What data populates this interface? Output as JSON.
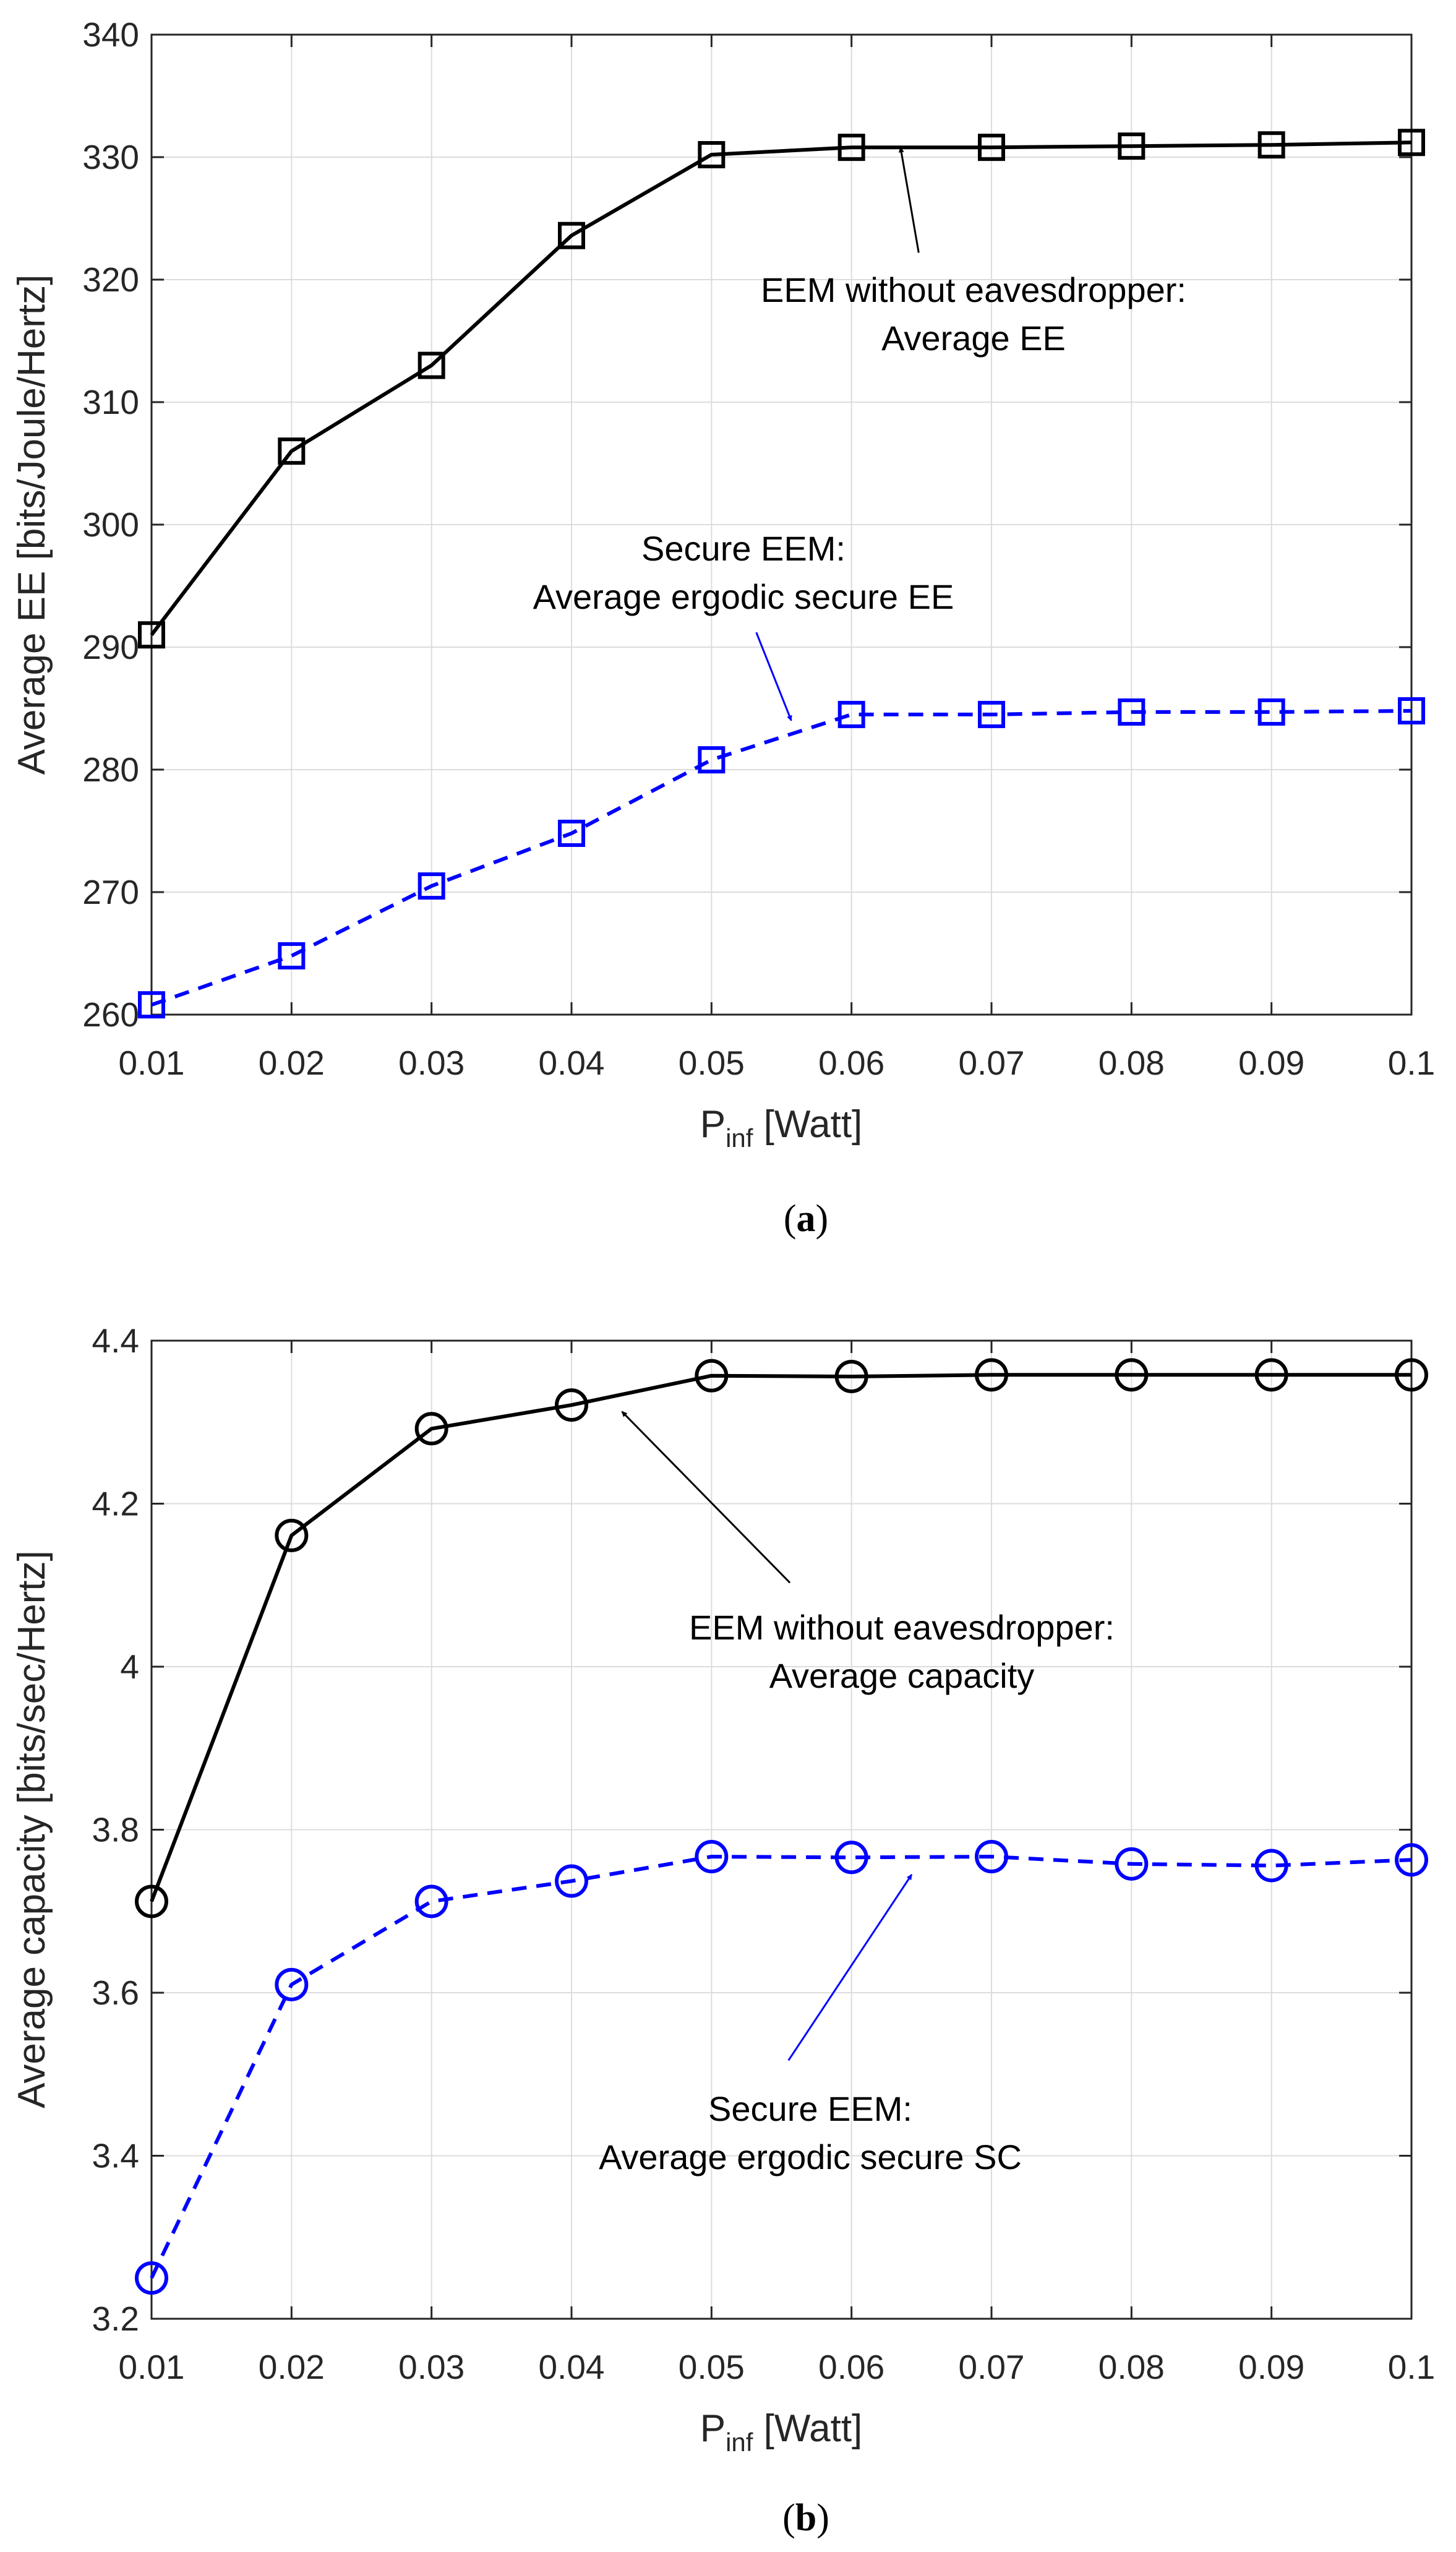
{
  "chart_data": [
    {
      "type": "line",
      "panel": "a",
      "caption_open": "(",
      "caption_letter": "a",
      "caption_close": ")",
      "xlabel_main": "P",
      "xlabel_sub": "inf",
      "xlabel_unit": " [Watt]",
      "ylabel": "Average EE [bits/Joule/Hertz]",
      "x": [
        0.01,
        0.02,
        0.03,
        0.04,
        0.05,
        0.06,
        0.07,
        0.08,
        0.09,
        0.1
      ],
      "x_tick_labels": [
        "0.01",
        "0.02",
        "0.03",
        "0.04",
        "0.05",
        "0.06",
        "0.07",
        "0.08",
        "0.09",
        "0.1"
      ],
      "xlim": [
        0.01,
        0.1
      ],
      "ylim": [
        260,
        340
      ],
      "y_ticks": [
        260,
        270,
        280,
        290,
        300,
        310,
        320,
        330,
        340
      ],
      "y_tick_labels": [
        "260",
        "270",
        "280",
        "290",
        "300",
        "310",
        "320",
        "330",
        "340"
      ],
      "grid": true,
      "series": [
        {
          "name": "EEM without eavesdropper: Average EE",
          "color": "#000000",
          "line_style": "solid",
          "marker": "square",
          "values": [
            291.0,
            306.0,
            313.0,
            323.6,
            330.2,
            330.8,
            330.8,
            330.9,
            331.0,
            331.2
          ]
        },
        {
          "name": "Secure EEM: Average ergodic secure EE",
          "color": "#0000ff",
          "line_style": "dashed",
          "marker": "square",
          "values": [
            260.8,
            264.8,
            270.5,
            274.8,
            280.8,
            284.5,
            284.5,
            284.7,
            284.7,
            284.8
          ]
        }
      ],
      "annotations": [
        {
          "lines": [
            "EEM without eavesdropper:",
            "Average EE"
          ],
          "color": "#000000",
          "arrow_to": [
            0.0635,
            330.8
          ],
          "arrow_from": [
            0.0648,
            322.2
          ]
        },
        {
          "lines": [
            "Secure EEM:",
            "Average ergodic secure EE"
          ],
          "color": "#0000ff",
          "arrow_to": [
            0.0557,
            284.0
          ],
          "arrow_from": [
            0.0532,
            291.2
          ]
        }
      ]
    },
    {
      "type": "line",
      "panel": "b",
      "caption_open": "(",
      "caption_letter": "b",
      "caption_close": ")",
      "xlabel_main": "P",
      "xlabel_sub": "inf",
      "xlabel_unit": " [Watt]",
      "ylabel": "Average capacity [bits/sec/Hertz]",
      "x": [
        0.01,
        0.02,
        0.03,
        0.04,
        0.05,
        0.06,
        0.07,
        0.08,
        0.09,
        0.1
      ],
      "x_tick_labels": [
        "0.01",
        "0.02",
        "0.03",
        "0.04",
        "0.05",
        "0.06",
        "0.07",
        "0.08",
        "0.09",
        "0.1"
      ],
      "xlim": [
        0.01,
        0.1
      ],
      "ylim": [
        3.2,
        4.4
      ],
      "y_ticks": [
        3.2,
        3.4,
        3.6,
        3.8,
        4.0,
        4.2,
        4.4
      ],
      "y_tick_labels": [
        "3.2",
        "3.4",
        "3.6",
        "3.8",
        "4",
        "4.2",
        "4.4"
      ],
      "grid": true,
      "series": [
        {
          "name": "EEM without eavesdropper: Average capacity",
          "color": "#000000",
          "line_style": "solid",
          "marker": "circle",
          "values": [
            3.712,
            4.161,
            4.292,
            4.321,
            4.357,
            4.356,
            4.358,
            4.358,
            4.358,
            4.358
          ]
        },
        {
          "name": "Secure EEM: Average ergodic secure SC",
          "color": "#0000ff",
          "line_style": "dashed",
          "marker": "circle",
          "values": [
            3.25,
            3.61,
            3.712,
            3.737,
            3.767,
            3.766,
            3.767,
            3.758,
            3.756,
            3.763
          ]
        }
      ],
      "annotations": [
        {
          "lines": [
            "EEM without eavesdropper:",
            "Average capacity"
          ],
          "color": "#000000",
          "arrow_to": [
            0.0436,
            4.313
          ],
          "arrow_from": [
            0.0556,
            4.103
          ]
        },
        {
          "lines": [
            "Secure EEM:",
            "Average ergodic secure SC"
          ],
          "color": "#0000ff",
          "arrow_to": [
            0.0643,
            3.745
          ],
          "arrow_from": [
            0.0555,
            3.517
          ]
        }
      ]
    }
  ]
}
